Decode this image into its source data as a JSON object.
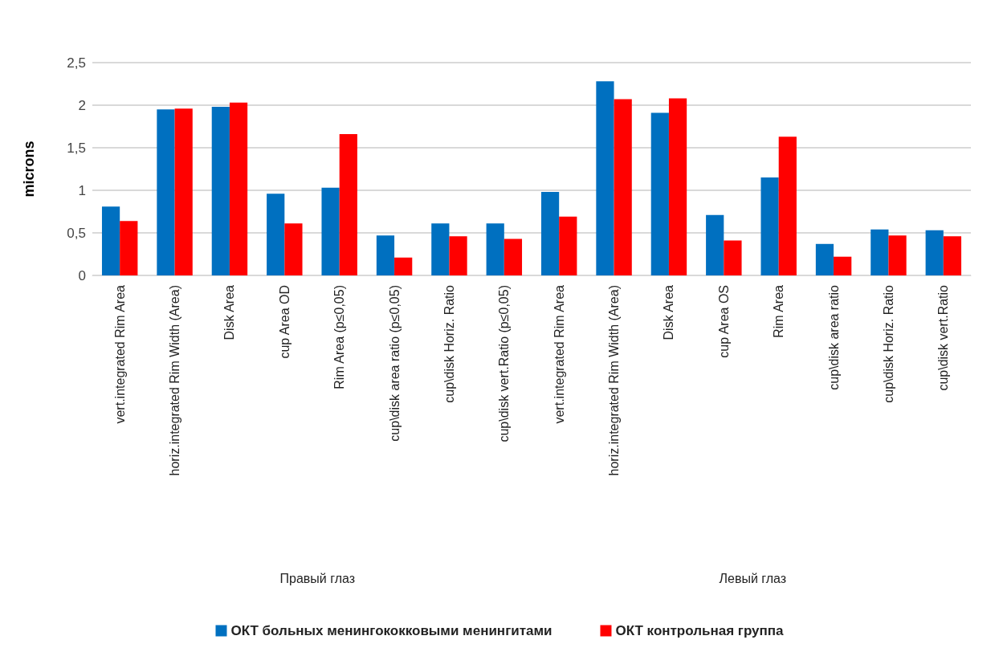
{
  "chart_data": {
    "type": "bar",
    "categories": [
      "vert.integrated Rim Area",
      "horiz.integrated Rim Width (Area)",
      "Disk Area",
      "cup Area OD",
      "Rim Area (p≤0,05)",
      "cup\\disk area ratio (p≤0,05)",
      "cup\\disk Horiz. Ratio",
      "cup\\disk vert.Ratio (p≤0,05)",
      "vert.integrated Rim Area",
      "horiz.integrated Rim Width (Area)",
      "Disk Area",
      "cup Area OS",
      "Rim Area",
      "cup\\disk area ratio",
      "cup\\disk Horiz. Ratio",
      "cup\\disk vert.Ratio"
    ],
    "series": [
      {
        "name": "ОКТ больных менингококковыми менингитами",
        "color": "#0070c0",
        "values": [
          0.81,
          1.95,
          1.98,
          0.96,
          1.03,
          0.47,
          0.61,
          0.61,
          0.98,
          2.28,
          1.91,
          0.71,
          1.15,
          0.37,
          0.54,
          0.53
        ]
      },
      {
        "name": "ОКТ контрольная группа",
        "color": "#ff0000",
        "values": [
          0.64,
          1.96,
          2.03,
          0.61,
          1.66,
          0.21,
          0.46,
          0.43,
          0.69,
          2.07,
          2.08,
          0.41,
          1.63,
          0.22,
          0.47,
          0.46
        ]
      }
    ],
    "ylabel": "microns",
    "ylim": [
      0,
      2.5
    ],
    "yticks": [
      0,
      {
        "value": 0.5,
        "label": "0,5"
      },
      1,
      {
        "value": 1.5,
        "label": "1,5"
      },
      2,
      {
        "value": 2.5,
        "label": "2,5"
      }
    ],
    "annotations": [
      "Правый глаз",
      "Левый глаз"
    ],
    "grid": "y",
    "legend": "bottom"
  }
}
